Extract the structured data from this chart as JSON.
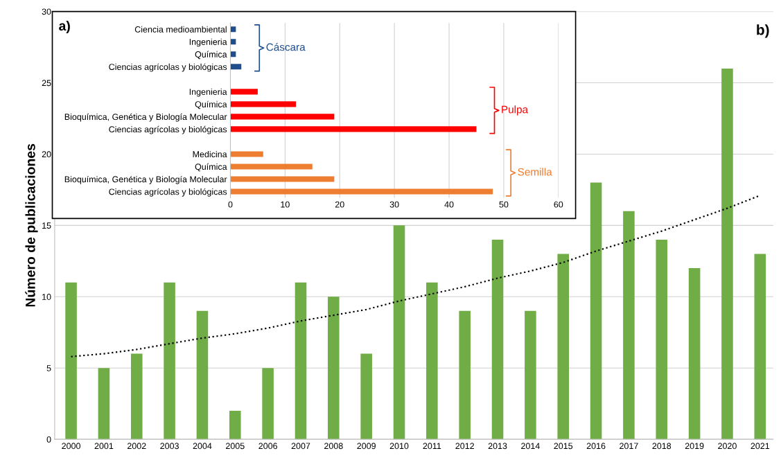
{
  "chart_data": [
    {
      "type": "bar",
      "ylabel": "Número de publicaciones",
      "categories": [
        "2000",
        "2001",
        "2002",
        "2003",
        "2004",
        "2005",
        "2006",
        "2007",
        "2008",
        "2009",
        "2010",
        "2011",
        "2012",
        "2013",
        "2014",
        "2015",
        "2016",
        "2017",
        "2018",
        "2019",
        "2020",
        "2021"
      ],
      "series": [
        {
          "type": "bar",
          "color": "#70ad47",
          "values": [
            11,
            5,
            6,
            11,
            9,
            2,
            5,
            11,
            10,
            6,
            15,
            11,
            9,
            14,
            9,
            13,
            18,
            16,
            14,
            12,
            26,
            13
          ]
        },
        {
          "type": "line",
          "color": "#000000",
          "line_style": "dotted",
          "values": [
            5.8,
            6.0,
            6.3,
            6.7,
            7.1,
            7.4,
            7.8,
            8.3,
            8.7,
            9.1,
            9.7,
            10.2,
            10.7,
            11.3,
            11.8,
            12.4,
            13.2,
            13.9,
            14.6,
            15.4,
            16.2,
            17.1
          ]
        }
      ],
      "ylim": [
        0,
        30
      ],
      "yticks": [
        0,
        5,
        10,
        15,
        20,
        25,
        30
      ],
      "grid": "y",
      "annotations": [
        "b)"
      ]
    },
    {
      "type": "bar",
      "orientation": "horizontal",
      "categories": [
        "Ciencia medioambiental",
        "Ingenieria",
        "Química",
        "Ciencias agrícolas y biológicas",
        null,
        "Ingenieria",
        "Química",
        "Bioquímica, Genética y Biología Molecular",
        "Ciencias agrícolas y biológicas",
        null,
        "Medicina",
        "Química",
        "Bioquímica, Genética y Biología Molecular",
        "Ciencias agrícolas y biológicas"
      ],
      "series": [
        {
          "name": "Cáscara",
          "color": "#1f4e8c",
          "values": [
            1,
            1,
            1,
            2,
            null,
            null,
            null,
            null,
            null,
            null,
            null,
            null,
            null,
            null
          ]
        },
        {
          "name": "Pulpa",
          "color": "#ff0000",
          "values": [
            null,
            null,
            null,
            null,
            null,
            5,
            12,
            19,
            45,
            null,
            null,
            null,
            null,
            null
          ]
        },
        {
          "name": "Semilla",
          "color": "#ed7d31",
          "values": [
            null,
            null,
            null,
            null,
            null,
            null,
            null,
            null,
            null,
            null,
            6,
            15,
            19,
            48
          ]
        }
      ],
      "xlim": [
        0,
        60
      ],
      "xticks": [
        0,
        10,
        20,
        30,
        40,
        50,
        60
      ],
      "grid": "x",
      "annotations": [
        "a)"
      ]
    }
  ]
}
